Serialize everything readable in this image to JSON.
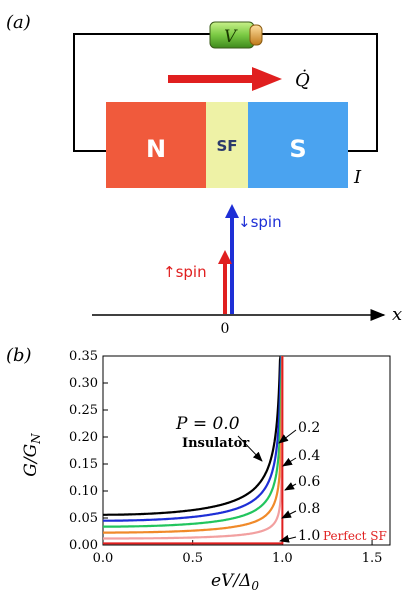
{
  "panel_a": {
    "label": "(a)",
    "battery_label": "V",
    "heat_label": "Q̇",
    "current_label": "I",
    "blocks": [
      {
        "id": "n",
        "label": "N",
        "color": "#f05a3c"
      },
      {
        "id": "sf",
        "label": "SF",
        "color": "#eef2a6",
        "text_color": "#2b3a6b"
      },
      {
        "id": "s",
        "label": "S",
        "color": "#4aa3f0"
      }
    ],
    "spin_up_label": "↑spin",
    "spin_down_label": "↓spin",
    "axis_x_label": "x",
    "axis_origin_label": "0",
    "colors": {
      "up": "#e01f1f",
      "down": "#1e2fd6",
      "battery": "#7ac943"
    }
  },
  "panel_b": {
    "label": "(b)",
    "ylabel": "G/G",
    "ylabel_sub": "N",
    "xlabel": "eV/Δ",
    "xlabel_sub": "0",
    "annotations": {
      "p00_main": "P = 0.0",
      "insulator": "Insulator",
      "p02": "0.2",
      "p04": "0.4",
      "p06": "0.6",
      "p08": "0.8",
      "p10": "1.0",
      "perfect_sf": "Perfect SF"
    }
  },
  "chart_data": {
    "type": "line",
    "xlabel": "eV/Δ0",
    "ylabel": "G/GN",
    "xlim": [
      0,
      1.6
    ],
    "ylim": [
      0,
      0.35
    ],
    "xticks": [
      "0.0",
      "0.5",
      "1.0",
      "1.5"
    ],
    "yticks": [
      "0.00",
      "0.05",
      "0.10",
      "0.15",
      "0.20",
      "0.25",
      "0.30",
      "0.35"
    ],
    "grid": false,
    "series": [
      {
        "name": "P = 0.0",
        "color": "#000000",
        "g0": 0.056
      },
      {
        "name": "0.2",
        "color": "#1e2fd6",
        "g0": 0.045
      },
      {
        "name": "0.4",
        "color": "#22c55e",
        "g0": 0.034
      },
      {
        "name": "0.6",
        "color": "#f08a2a",
        "g0": 0.023
      },
      {
        "name": "0.8",
        "color": "#f2a0a0",
        "g0": 0.012
      },
      {
        "name": "1.0",
        "color": "#e01f1f",
        "g0": 0.0
      }
    ]
  }
}
